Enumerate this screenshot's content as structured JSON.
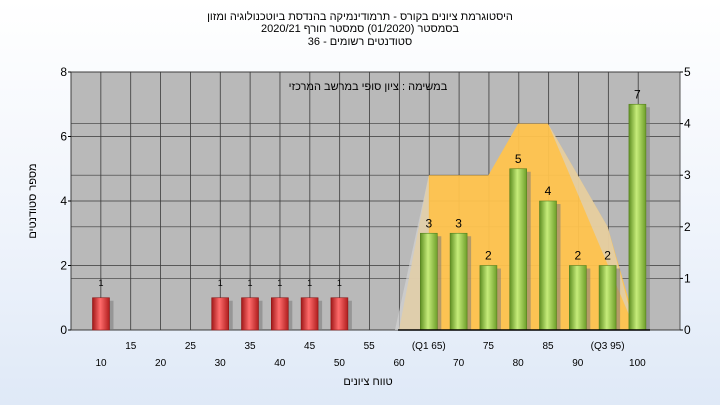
{
  "header": {
    "title_line1": "היסטוגרמת ציונים בקורס - תרמודינמיקה בהנדסת ביוטכנולוגיה ומזון",
    "title_line2": "בסמסטר  (01/2020)  סמסטר חורף  2020/21",
    "title_line3": "סטודנטים רשומים - 36"
  },
  "chart_data": {
    "type": "bar",
    "annotation": "במשימה : ציון סופי במרשב המרכזי",
    "xlabel": "טווח ציונים",
    "ylabel": "מספר סטודנטים",
    "categories": [
      "10",
      "15",
      "20",
      "25",
      "30",
      "35",
      "40",
      "45",
      "50",
      "55",
      "60",
      "(Q1 65)",
      "70",
      "75",
      "80",
      "85",
      "90",
      "(Q3 95)",
      "100"
    ],
    "tick_row_upper": [
      "15",
      "25",
      "35",
      "45",
      "55",
      "(Q1 65)",
      "75",
      "85",
      "(Q3 95)"
    ],
    "tick_row_lower": [
      "10",
      "20",
      "30",
      "40",
      "50",
      "60",
      "70",
      "80",
      "90",
      "100"
    ],
    "values": [
      1,
      0,
      0,
      0,
      1,
      1,
      1,
      1,
      1,
      0,
      0,
      3,
      3,
      2,
      5,
      4,
      2,
      2,
      7
    ],
    "value_labels": [
      "1",
      "",
      "",
      "",
      "1",
      "1",
      "1",
      "1",
      "1",
      "",
      "",
      "3",
      "3",
      "2",
      "5",
      "4",
      "2",
      "2",
      "7"
    ],
    "fail_color": "#e03030",
    "pass_color": "#8fc043",
    "ylim": [
      0,
      8
    ],
    "y_ticks": [
      "0",
      "2",
      "4",
      "6",
      "8"
    ],
    "y2lim": [
      0,
      5
    ],
    "y2_ticks": [
      "0",
      "1",
      "2",
      "3",
      "4",
      "5"
    ],
    "distribution_area": {
      "color": "#ffc34d",
      "points": [
        [
          60,
          0
        ],
        [
          65,
          3
        ],
        [
          75,
          3
        ],
        [
          80,
          4
        ],
        [
          85,
          4
        ],
        [
          95,
          2
        ],
        [
          100,
          0
        ]
      ]
    },
    "grid": true,
    "plot_background": "#b9b9b9"
  }
}
